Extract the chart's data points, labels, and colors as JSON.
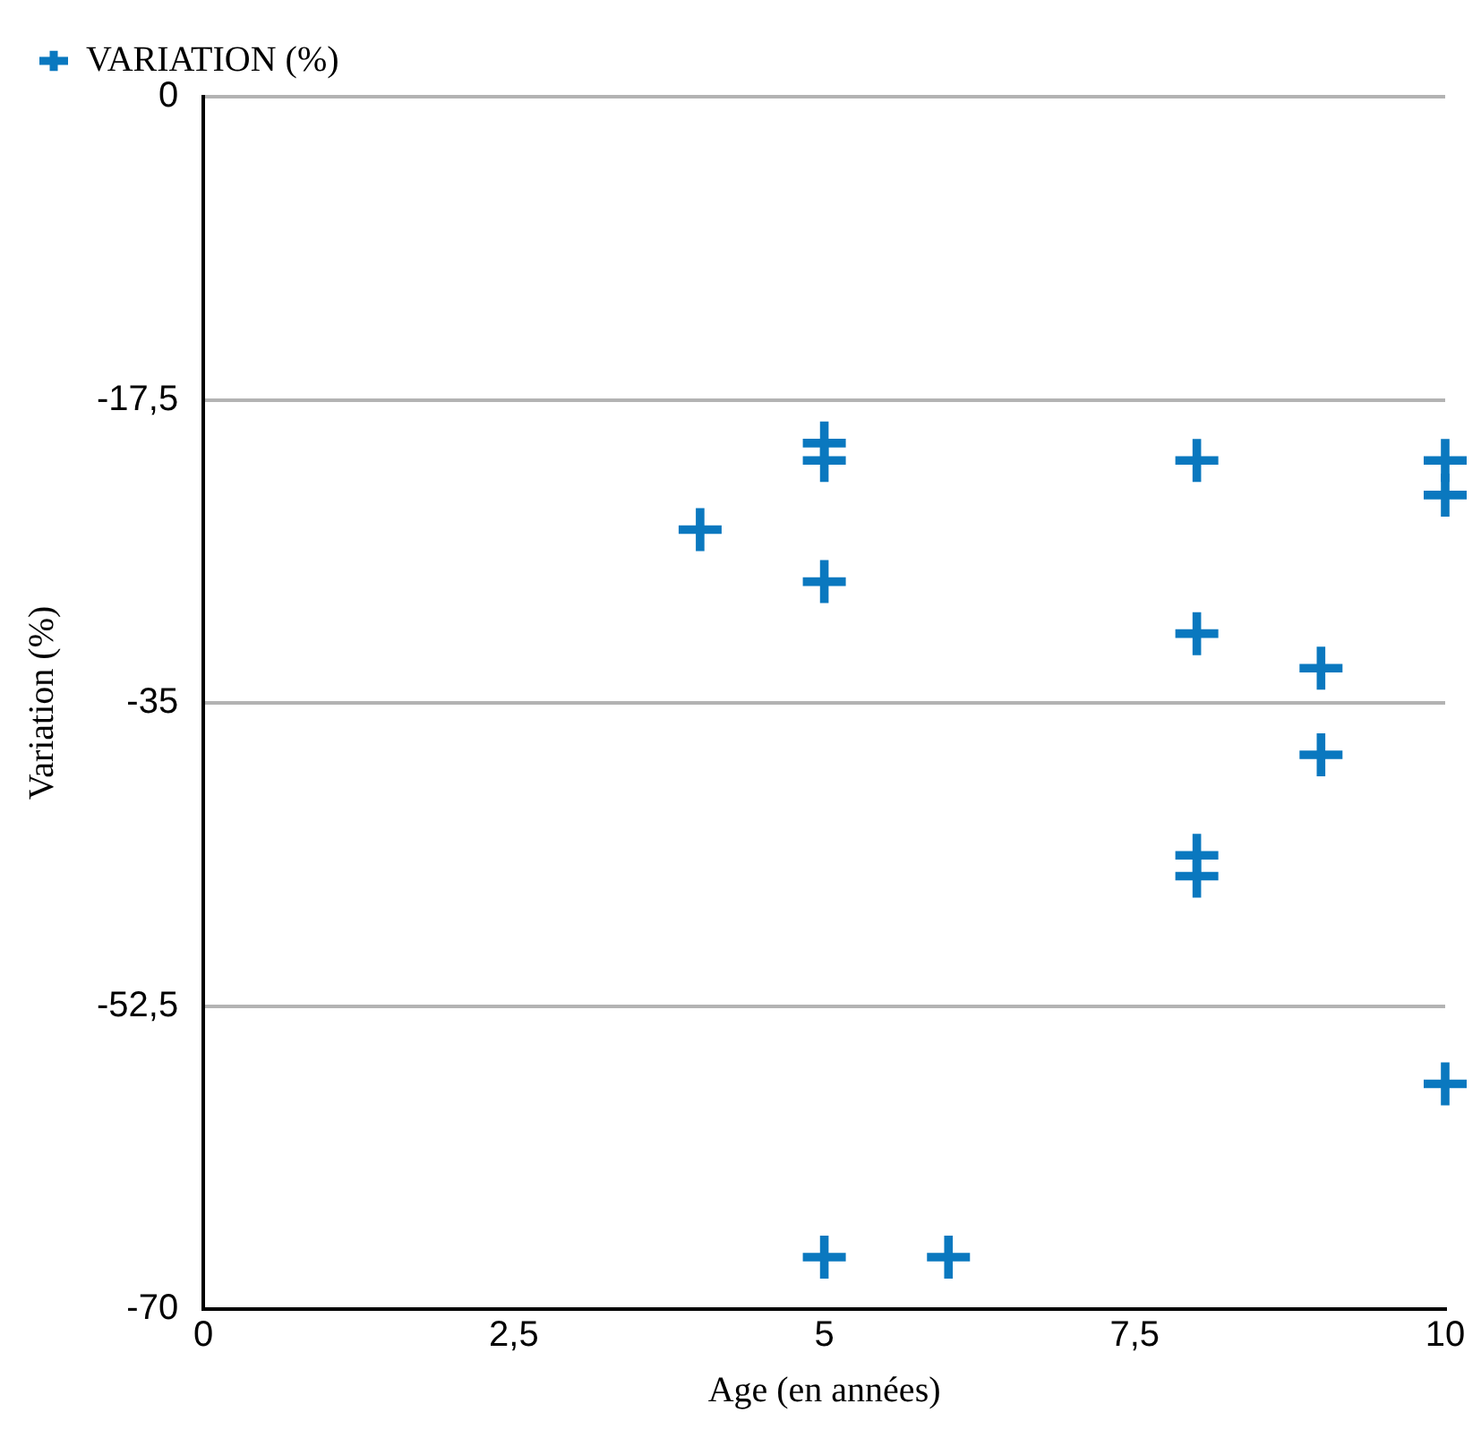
{
  "chart_data": {
    "type": "scatter",
    "xlabel": "Age (en années)",
    "ylabel": "Variation (%)",
    "xlim": [
      0,
      10
    ],
    "xticks": [
      0,
      {
        "value": 2.5,
        "label": "2,5"
      },
      5,
      {
        "value": 7.5,
        "label": "7,5"
      },
      10
    ],
    "ylim": [
      -70,
      0
    ],
    "yticks": [
      -70,
      {
        "value": -52.5,
        "label": "-52,5"
      },
      -35,
      {
        "value": -17.5,
        "label": "-17,5"
      },
      0
    ],
    "grid": "y",
    "legend": "top left",
    "marker": "cross",
    "series": [
      {
        "name": "VARIATION (%)",
        "color": "#0a78bf",
        "x": [
          4,
          5,
          5,
          5,
          5,
          6,
          8,
          8,
          8,
          8,
          9,
          9,
          10,
          10,
          10
        ],
        "values": [
          -25,
          -20,
          -21,
          -28,
          -67,
          -67,
          -21,
          -31,
          -43.8,
          -45,
          -33,
          -38,
          -21,
          -23,
          -57
        ]
      }
    ]
  }
}
